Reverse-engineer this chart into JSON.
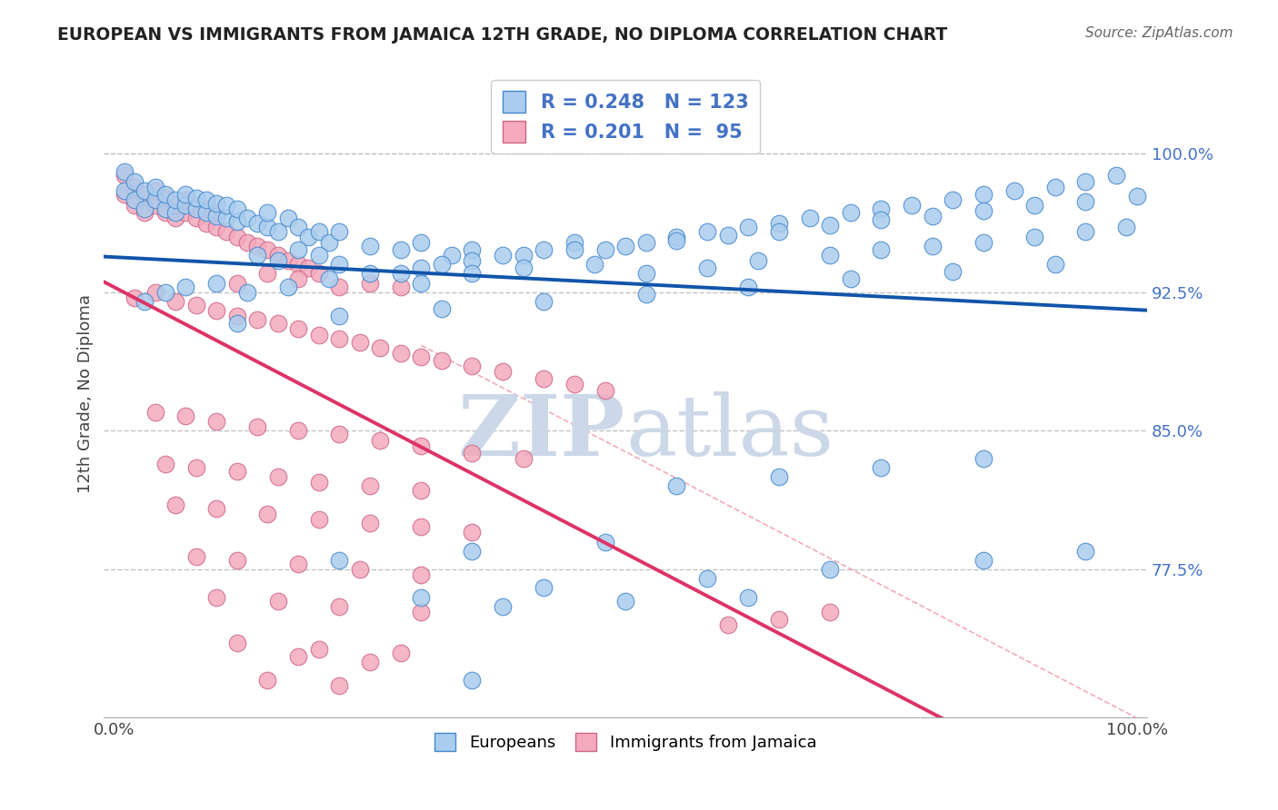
{
  "title": "EUROPEAN VS IMMIGRANTS FROM JAMAICA 12TH GRADE, NO DIPLOMA CORRELATION CHART",
  "source": "Source: ZipAtlas.com",
  "ylabel": "12th Grade, No Diploma",
  "yticks": [
    0.775,
    0.85,
    0.925,
    1.0
  ],
  "ytick_labels": [
    "77.5%",
    "85.0%",
    "92.5%",
    "100.0%"
  ],
  "xtick_labels": [
    "0.0%",
    "100.0%"
  ],
  "xlim": [
    -0.01,
    1.01
  ],
  "ylim": [
    0.695,
    1.045
  ],
  "legend_r_blue": "R = 0.248",
  "legend_n_blue": "N = 123",
  "legend_r_pink": "R = 0.201",
  "legend_n_pink": "N =  95",
  "legend_label_blue": "Europeans",
  "legend_label_pink": "Immigrants from Jamaica",
  "color_blue_face": "#aaccee",
  "color_blue_edge": "#4488cc",
  "color_pink_face": "#f4aabc",
  "color_pink_edge": "#cc6688",
  "color_blue_line": "#1155aa",
  "color_pink_line": "#dd3366",
  "color_pink_dash": "#ee8899",
  "color_grid": "#bbbbbb",
  "color_ytick": "#4472c4",
  "watermark_color": "#ccd8e8",
  "blue_x": [
    0.01,
    0.01,
    0.02,
    0.02,
    0.03,
    0.03,
    0.04,
    0.04,
    0.05,
    0.05,
    0.06,
    0.06,
    0.07,
    0.07,
    0.08,
    0.08,
    0.09,
    0.09,
    0.1,
    0.1,
    0.11,
    0.11,
    0.12,
    0.12,
    0.13,
    0.14,
    0.15,
    0.15,
    0.16,
    0.17,
    0.18,
    0.19,
    0.2,
    0.21,
    0.22,
    0.14,
    0.16,
    0.18,
    0.2,
    0.22,
    0.25,
    0.28,
    0.3,
    0.33,
    0.35,
    0.28,
    0.32,
    0.38,
    0.42,
    0.45,
    0.48,
    0.52,
    0.55,
    0.58,
    0.62,
    0.65,
    0.68,
    0.72,
    0.75,
    0.78,
    0.82,
    0.85,
    0.88,
    0.92,
    0.95,
    0.98,
    0.3,
    0.35,
    0.4,
    0.45,
    0.5,
    0.55,
    0.6,
    0.65,
    0.7,
    0.75,
    0.8,
    0.85,
    0.9,
    0.95,
    1.0,
    0.03,
    0.05,
    0.07,
    0.1,
    0.13,
    0.17,
    0.21,
    0.25,
    0.3,
    0.35,
    0.4,
    0.47,
    0.52,
    0.58,
    0.63,
    0.7,
    0.75,
    0.8,
    0.85,
    0.9,
    0.95,
    0.99,
    0.12,
    0.22,
    0.32,
    0.42,
    0.52,
    0.62,
    0.72,
    0.82,
    0.92,
    0.55,
    0.65,
    0.75,
    0.85,
    0.22,
    0.35,
    0.48,
    0.3,
    0.42,
    0.58,
    0.7,
    0.85,
    0.95,
    0.38,
    0.5,
    0.62,
    0.35
  ],
  "blue_y": [
    0.98,
    0.99,
    0.975,
    0.985,
    0.97,
    0.98,
    0.975,
    0.982,
    0.97,
    0.978,
    0.968,
    0.975,
    0.972,
    0.978,
    0.97,
    0.976,
    0.968,
    0.975,
    0.966,
    0.973,
    0.965,
    0.972,
    0.963,
    0.97,
    0.965,
    0.962,
    0.96,
    0.968,
    0.958,
    0.965,
    0.96,
    0.955,
    0.958,
    0.952,
    0.958,
    0.945,
    0.942,
    0.948,
    0.945,
    0.94,
    0.95,
    0.948,
    0.952,
    0.945,
    0.948,
    0.935,
    0.94,
    0.945,
    0.948,
    0.952,
    0.948,
    0.952,
    0.955,
    0.958,
    0.96,
    0.962,
    0.965,
    0.968,
    0.97,
    0.972,
    0.975,
    0.978,
    0.98,
    0.982,
    0.985,
    0.988,
    0.938,
    0.942,
    0.945,
    0.948,
    0.95,
    0.953,
    0.956,
    0.958,
    0.961,
    0.964,
    0.966,
    0.969,
    0.972,
    0.974,
    0.977,
    0.92,
    0.925,
    0.928,
    0.93,
    0.925,
    0.928,
    0.932,
    0.935,
    0.93,
    0.935,
    0.938,
    0.94,
    0.935,
    0.938,
    0.942,
    0.945,
    0.948,
    0.95,
    0.952,
    0.955,
    0.958,
    0.96,
    0.908,
    0.912,
    0.916,
    0.92,
    0.924,
    0.928,
    0.932,
    0.936,
    0.94,
    0.82,
    0.825,
    0.83,
    0.835,
    0.78,
    0.785,
    0.79,
    0.76,
    0.765,
    0.77,
    0.775,
    0.78,
    0.785,
    0.755,
    0.758,
    0.76,
    0.715
  ],
  "pink_x": [
    0.01,
    0.01,
    0.02,
    0.02,
    0.03,
    0.03,
    0.04,
    0.04,
    0.05,
    0.05,
    0.06,
    0.06,
    0.07,
    0.07,
    0.08,
    0.08,
    0.09,
    0.09,
    0.1,
    0.1,
    0.11,
    0.12,
    0.13,
    0.14,
    0.15,
    0.16,
    0.17,
    0.18,
    0.19,
    0.2,
    0.12,
    0.15,
    0.18,
    0.22,
    0.25,
    0.28,
    0.02,
    0.04,
    0.06,
    0.08,
    0.1,
    0.12,
    0.14,
    0.16,
    0.18,
    0.2,
    0.22,
    0.24,
    0.26,
    0.28,
    0.3,
    0.32,
    0.35,
    0.38,
    0.42,
    0.45,
    0.48,
    0.04,
    0.07,
    0.1,
    0.14,
    0.18,
    0.22,
    0.26,
    0.3,
    0.35,
    0.4,
    0.05,
    0.08,
    0.12,
    0.16,
    0.2,
    0.25,
    0.3,
    0.06,
    0.1,
    0.15,
    0.2,
    0.25,
    0.3,
    0.35,
    0.08,
    0.12,
    0.18,
    0.24,
    0.3,
    0.1,
    0.16,
    0.22,
    0.3,
    0.12,
    0.2,
    0.28,
    0.15,
    0.22,
    0.6,
    0.65,
    0.7,
    0.18,
    0.25
  ],
  "pink_y": [
    0.978,
    0.988,
    0.972,
    0.982,
    0.968,
    0.978,
    0.972,
    0.98,
    0.968,
    0.976,
    0.965,
    0.972,
    0.968,
    0.975,
    0.965,
    0.972,
    0.962,
    0.97,
    0.96,
    0.968,
    0.958,
    0.955,
    0.952,
    0.95,
    0.948,
    0.945,
    0.942,
    0.94,
    0.938,
    0.935,
    0.93,
    0.935,
    0.932,
    0.928,
    0.93,
    0.928,
    0.922,
    0.925,
    0.92,
    0.918,
    0.915,
    0.912,
    0.91,
    0.908,
    0.905,
    0.902,
    0.9,
    0.898,
    0.895,
    0.892,
    0.89,
    0.888,
    0.885,
    0.882,
    0.878,
    0.875,
    0.872,
    0.86,
    0.858,
    0.855,
    0.852,
    0.85,
    0.848,
    0.845,
    0.842,
    0.838,
    0.835,
    0.832,
    0.83,
    0.828,
    0.825,
    0.822,
    0.82,
    0.818,
    0.81,
    0.808,
    0.805,
    0.802,
    0.8,
    0.798,
    0.795,
    0.782,
    0.78,
    0.778,
    0.775,
    0.772,
    0.76,
    0.758,
    0.755,
    0.752,
    0.735,
    0.732,
    0.73,
    0.715,
    0.712,
    0.745,
    0.748,
    0.752,
    0.728,
    0.725
  ]
}
